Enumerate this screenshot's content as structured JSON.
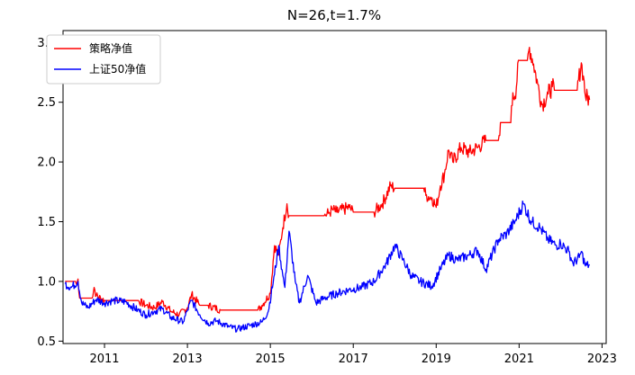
{
  "chart_data": {
    "type": "line",
    "title": "N=26,t=1.7%",
    "xlabel": "",
    "ylabel": "",
    "xlim": [
      2010.0,
      2023.1
    ],
    "ylim": [
      0.48,
      3.1
    ],
    "x_ticks": [
      2011,
      2013,
      2015,
      2017,
      2019,
      2021,
      2023
    ],
    "y_ticks": [
      0.5,
      1.0,
      1.5,
      2.0,
      2.5,
      3.0
    ],
    "x_tick_labels": [
      "2011",
      "2013",
      "2015",
      "2017",
      "2019",
      "2021",
      "2023"
    ],
    "y_tick_labels": [
      "0.5",
      "1.0",
      "1.5",
      "2.0",
      "2.5",
      "3.0"
    ],
    "grid": false,
    "legend_position": "top-left",
    "series": [
      {
        "name": "策略净值",
        "color": "#ff0000",
        "points": [
          [
            2010.05,
            1.0
          ],
          [
            2010.3,
            1.0
          ],
          [
            2010.33,
            0.97
          ],
          [
            2010.36,
            1.02
          ],
          [
            2010.4,
            0.86
          ],
          [
            2010.7,
            0.86
          ],
          [
            2010.75,
            0.95
          ],
          [
            2010.8,
            0.88
          ],
          [
            2011.0,
            0.84
          ],
          [
            2011.5,
            0.84
          ],
          [
            2011.8,
            0.84
          ],
          [
            2012.0,
            0.8
          ],
          [
            2012.2,
            0.78
          ],
          [
            2012.4,
            0.83
          ],
          [
            2012.6,
            0.75
          ],
          [
            2012.8,
            0.72
          ],
          [
            2013.0,
            0.78
          ],
          [
            2013.1,
            0.89
          ],
          [
            2013.3,
            0.8
          ],
          [
            2013.5,
            0.8
          ],
          [
            2013.8,
            0.76
          ],
          [
            2014.2,
            0.76
          ],
          [
            2014.7,
            0.76
          ],
          [
            2014.8,
            0.8
          ],
          [
            2015.0,
            0.9
          ],
          [
            2015.1,
            1.3
          ],
          [
            2015.2,
            1.22
          ],
          [
            2015.3,
            1.45
          ],
          [
            2015.4,
            1.65
          ],
          [
            2015.45,
            1.55
          ],
          [
            2016.0,
            1.55
          ],
          [
            2016.3,
            1.55
          ],
          [
            2016.4,
            1.57
          ],
          [
            2016.5,
            1.6
          ],
          [
            2016.6,
            1.58
          ],
          [
            2016.9,
            1.62
          ],
          [
            2017.0,
            1.58
          ],
          [
            2017.5,
            1.58
          ],
          [
            2017.7,
            1.65
          ],
          [
            2017.9,
            1.8
          ],
          [
            2018.0,
            1.78
          ],
          [
            2018.7,
            1.78
          ],
          [
            2018.75,
            1.72
          ],
          [
            2018.9,
            1.7
          ],
          [
            2019.0,
            1.62
          ],
          [
            2019.1,
            1.8
          ],
          [
            2019.2,
            1.9
          ],
          [
            2019.3,
            2.1
          ],
          [
            2019.4,
            2.0
          ],
          [
            2019.6,
            2.12
          ],
          [
            2019.8,
            2.08
          ],
          [
            2020.0,
            2.12
          ],
          [
            2020.2,
            2.18
          ],
          [
            2020.5,
            2.18
          ],
          [
            2020.55,
            2.33
          ],
          [
            2020.8,
            2.33
          ],
          [
            2020.85,
            2.58
          ],
          [
            2020.9,
            2.55
          ],
          [
            2021.0,
            2.85
          ],
          [
            2021.2,
            2.85
          ],
          [
            2021.25,
            2.96
          ],
          [
            2021.35,
            2.82
          ],
          [
            2021.45,
            2.65
          ],
          [
            2021.55,
            2.48
          ],
          [
            2021.7,
            2.57
          ],
          [
            2021.8,
            2.63
          ],
          [
            2021.85,
            2.6
          ],
          [
            2022.3,
            2.6
          ],
          [
            2022.4,
            2.6
          ],
          [
            2022.5,
            2.83
          ],
          [
            2022.55,
            2.72
          ],
          [
            2022.6,
            2.55
          ],
          [
            2022.7,
            2.52
          ]
        ]
      },
      {
        "name": "上证50净值",
        "color": "#0000ff",
        "points": [
          [
            2010.05,
            0.98
          ],
          [
            2010.2,
            0.95
          ],
          [
            2010.36,
            1.0
          ],
          [
            2010.45,
            0.82
          ],
          [
            2010.6,
            0.78
          ],
          [
            2010.8,
            0.85
          ],
          [
            2011.0,
            0.82
          ],
          [
            2011.2,
            0.84
          ],
          [
            2011.5,
            0.83
          ],
          [
            2011.8,
            0.76
          ],
          [
            2012.0,
            0.72
          ],
          [
            2012.2,
            0.75
          ],
          [
            2012.4,
            0.77
          ],
          [
            2012.6,
            0.7
          ],
          [
            2012.9,
            0.66
          ],
          [
            2013.0,
            0.76
          ],
          [
            2013.1,
            0.84
          ],
          [
            2013.3,
            0.72
          ],
          [
            2013.5,
            0.65
          ],
          [
            2013.7,
            0.67
          ],
          [
            2014.0,
            0.62
          ],
          [
            2014.2,
            0.6
          ],
          [
            2014.5,
            0.63
          ],
          [
            2014.8,
            0.66
          ],
          [
            2014.95,
            0.75
          ],
          [
            2015.1,
            1.06
          ],
          [
            2015.2,
            1.3
          ],
          [
            2015.3,
            1.05
          ],
          [
            2015.35,
            0.95
          ],
          [
            2015.45,
            1.42
          ],
          [
            2015.6,
            1.0
          ],
          [
            2015.7,
            0.82
          ],
          [
            2015.9,
            1.05
          ],
          [
            2016.1,
            0.82
          ],
          [
            2016.3,
            0.86
          ],
          [
            2016.6,
            0.9
          ],
          [
            2016.9,
            0.93
          ],
          [
            2017.2,
            0.95
          ],
          [
            2017.5,
            1.0
          ],
          [
            2017.8,
            1.15
          ],
          [
            2018.0,
            1.3
          ],
          [
            2018.2,
            1.18
          ],
          [
            2018.4,
            1.05
          ],
          [
            2018.6,
            1.0
          ],
          [
            2018.9,
            0.96
          ],
          [
            2019.1,
            1.1
          ],
          [
            2019.3,
            1.22
          ],
          [
            2019.5,
            1.18
          ],
          [
            2019.8,
            1.22
          ],
          [
            2020.0,
            1.26
          ],
          [
            2020.2,
            1.1
          ],
          [
            2020.5,
            1.35
          ],
          [
            2020.7,
            1.4
          ],
          [
            2020.9,
            1.5
          ],
          [
            2021.1,
            1.65
          ],
          [
            2021.3,
            1.5
          ],
          [
            2021.5,
            1.45
          ],
          [
            2021.7,
            1.35
          ],
          [
            2021.9,
            1.3
          ],
          [
            2022.0,
            1.32
          ],
          [
            2022.2,
            1.25
          ],
          [
            2022.3,
            1.15
          ],
          [
            2022.45,
            1.2
          ],
          [
            2022.5,
            1.25
          ],
          [
            2022.6,
            1.13
          ],
          [
            2022.7,
            1.14
          ]
        ]
      }
    ]
  }
}
